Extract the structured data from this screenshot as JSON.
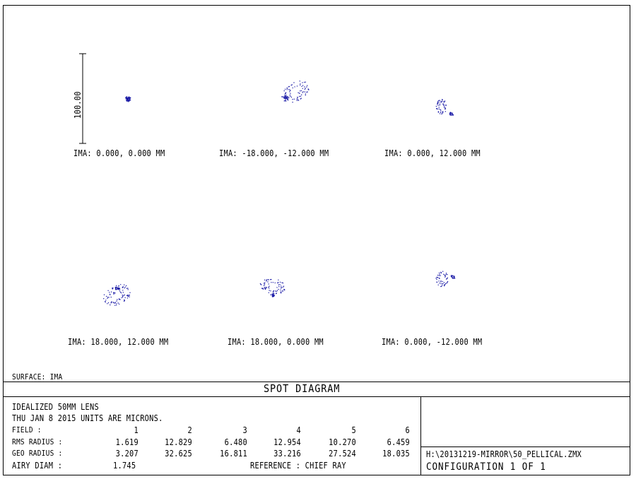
{
  "chart_data": {
    "type": "scatter",
    "title": "SPOT DIAGRAM",
    "scale_bar_label": "100.00",
    "surface_label": "SURFACE: IMA",
    "panels": [
      {
        "label": "IMA: 0.000, 0.000 MM"
      },
      {
        "label": "IMA: -18.000, -12.000 MM"
      },
      {
        "label": "IMA: 0.000, 12.000 MM"
      },
      {
        "label": "IMA: 18.000, 12.000 MM"
      },
      {
        "label": "IMA: 18.000, 0.000 MM"
      },
      {
        "label": "IMA: 0.000, -12.000 MM"
      }
    ],
    "series_color": "#1a1aa6"
  },
  "info": {
    "lens": "IDEALIZED 50MM LENS",
    "date_line": "THU JAN 8 2015   UNITS ARE MICRONS.",
    "field_label": "FIELD     :",
    "field_values": [
      "1",
      "2",
      "3",
      "4",
      "5",
      "6"
    ],
    "rms_label": "RMS RADIUS :",
    "rms_values": [
      "1.619",
      "12.829",
      "6.480",
      "12.954",
      "10.270",
      "6.459"
    ],
    "geo_label": "GEO RADIUS :",
    "geo_values": [
      "3.207",
      "32.625",
      "16.811",
      "33.216",
      "27.524",
      "18.035"
    ],
    "airy_label": "AIRY DIAM   :",
    "airy_value": "1.745",
    "reference": "REFERENCE   : CHIEF RAY",
    "file_path": "H:\\20131219-MIRROR\\50_PELLICAL.ZMX",
    "configuration": "CONFIGURATION  1  OF  1"
  }
}
